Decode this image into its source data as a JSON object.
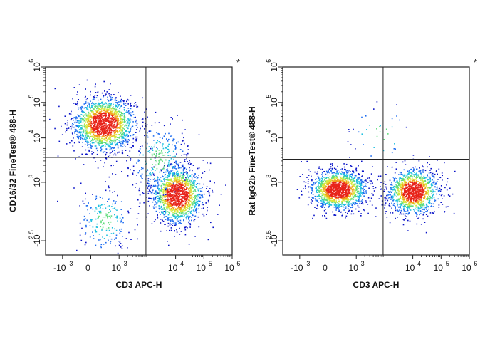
{
  "chart_data": [
    {
      "type": "scatter",
      "title": "",
      "corner_mark": "*",
      "xlabel": "CD3 APC-H",
      "ylabel": "CD16/32 FineTest® 488-H",
      "x_ticks": [
        {
          "base": "-10",
          "exp": "3"
        },
        {
          "base": "0",
          "exp": ""
        },
        {
          "base": "10",
          "exp": "3"
        },
        {
          "base": "10",
          "exp": "4"
        },
        {
          "base": "10",
          "exp": "5"
        },
        {
          "base": "10",
          "exp": "6"
        }
      ],
      "y_ticks": [
        {
          "base": "-10",
          "exp": "2.5"
        },
        {
          "base": "10",
          "exp": "3"
        },
        {
          "base": "10",
          "exp": "4"
        },
        {
          "base": "10",
          "exp": "5"
        },
        {
          "base": "10",
          "exp": "6"
        }
      ],
      "x_tick_pos": [
        -1,
        0,
        1,
        3,
        4,
        5
      ],
      "y_tick_pos": [
        -0.4,
        1.25,
        2.5,
        3.5,
        4.5
      ],
      "axis_range_x": [
        -1.6,
        5
      ],
      "axis_range_y": [
        -0.8,
        4.5
      ],
      "gate": {
        "x": 1.95,
        "y": 1.95
      },
      "colormap": [
        "#0a14c8",
        "#1d6cf0",
        "#1fc0e0",
        "#5fdc7a",
        "#d6e83a",
        "#f2a51c",
        "#e8241a"
      ],
      "populations": [
        {
          "name": "",
          "cx": 0.45,
          "cy": 2.9,
          "sx": 0.55,
          "sy": 0.38,
          "n": 1700
        },
        {
          "name": "",
          "cx": 3.05,
          "cy": 0.9,
          "sx": 0.45,
          "sy": 0.4,
          "n": 1500
        },
        {
          "name": "",
          "cx": 0.5,
          "cy": 0.2,
          "sx": 0.5,
          "sy": 0.5,
          "n": 220
        },
        {
          "name": "",
          "cx": 2.4,
          "cy": 1.9,
          "sx": 0.55,
          "sy": 0.55,
          "n": 300
        }
      ]
    },
    {
      "type": "scatter",
      "title": "",
      "corner_mark": "*",
      "xlabel": "CD3 APC-H",
      "ylabel": "Rat IgG2b FineTest® 488-H",
      "x_ticks": [
        {
          "base": "-10",
          "exp": "3"
        },
        {
          "base": "0",
          "exp": ""
        },
        {
          "base": "10",
          "exp": "3"
        },
        {
          "base": "10",
          "exp": "4"
        },
        {
          "base": "10",
          "exp": "5"
        },
        {
          "base": "10",
          "exp": "6"
        }
      ],
      "y_ticks": [
        {
          "base": "-10",
          "exp": "2.5"
        },
        {
          "base": "10",
          "exp": "3"
        },
        {
          "base": "10",
          "exp": "4"
        },
        {
          "base": "10",
          "exp": "5"
        },
        {
          "base": "10",
          "exp": "6"
        }
      ],
      "x_tick_pos": [
        -1,
        0,
        1,
        3,
        4,
        5
      ],
      "y_tick_pos": [
        -0.4,
        1.25,
        2.5,
        3.5,
        4.5
      ],
      "axis_range_x": [
        -1.6,
        5
      ],
      "axis_range_y": [
        -0.8,
        4.5
      ],
      "gate": {
        "x": 1.95,
        "y": 1.9
      },
      "colormap": [
        "#0a14c8",
        "#1d6cf0",
        "#1fc0e0",
        "#5fdc7a",
        "#d6e83a",
        "#f2a51c",
        "#e8241a"
      ],
      "populations": [
        {
          "name": "",
          "cx": 0.35,
          "cy": 1.05,
          "sx": 0.5,
          "sy": 0.28,
          "n": 1500
        },
        {
          "name": "",
          "cx": 3.0,
          "cy": 1.0,
          "sx": 0.45,
          "sy": 0.32,
          "n": 1300
        },
        {
          "name": "",
          "cx": 1.8,
          "cy": 2.6,
          "sx": 0.6,
          "sy": 0.45,
          "n": 40
        }
      ]
    }
  ]
}
